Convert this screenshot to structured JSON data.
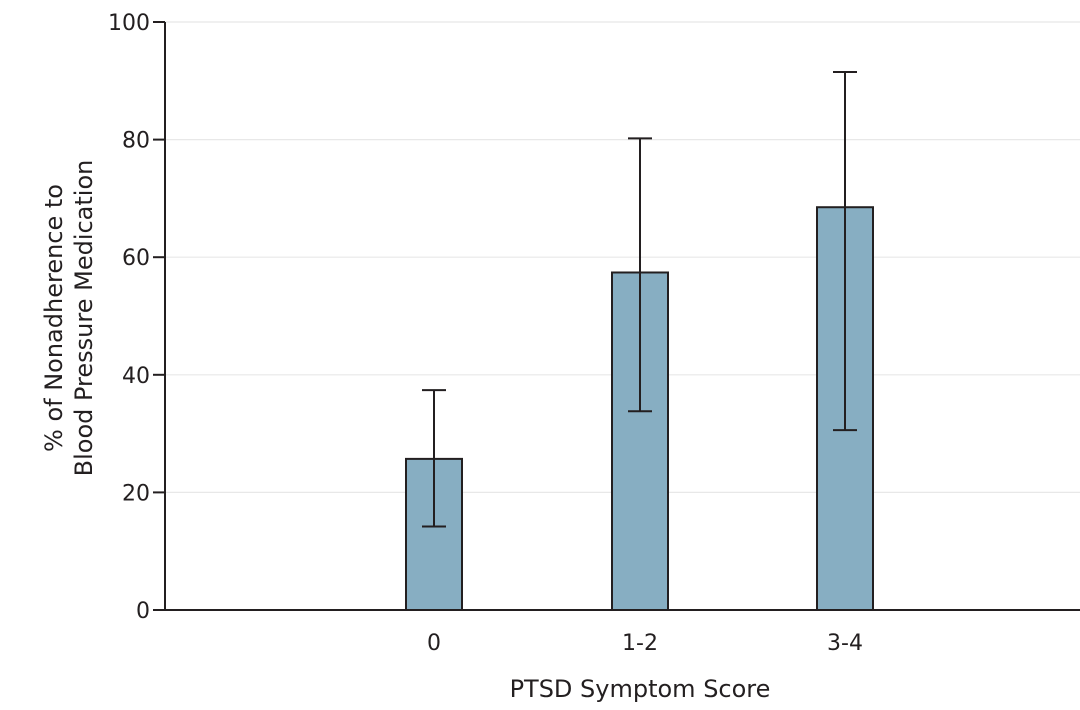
{
  "chart_data": {
    "type": "bar",
    "title": "",
    "xlabel": "PTSD Symptom Score",
    "ylabel_line1": "% of Nonadherence to",
    "ylabel_line2": "Blood Pressure Medication",
    "categories": [
      "0",
      "1-2",
      "3-4"
    ],
    "values": [
      25.7,
      57.4,
      68.5
    ],
    "error_low": [
      14.2,
      33.8,
      30.6
    ],
    "error_high": [
      37.4,
      80.2,
      91.5
    ],
    "ylim": [
      0,
      100
    ],
    "yticks": [
      0,
      20,
      40,
      60,
      80,
      100
    ],
    "ytick_labels": [
      "0",
      "20",
      "40",
      "60",
      "80",
      "100"
    ],
    "grid": true,
    "bar_color": "#87aec2",
    "bar_edge_color": "#231f20",
    "grid_color": "#e8e8e8"
  }
}
